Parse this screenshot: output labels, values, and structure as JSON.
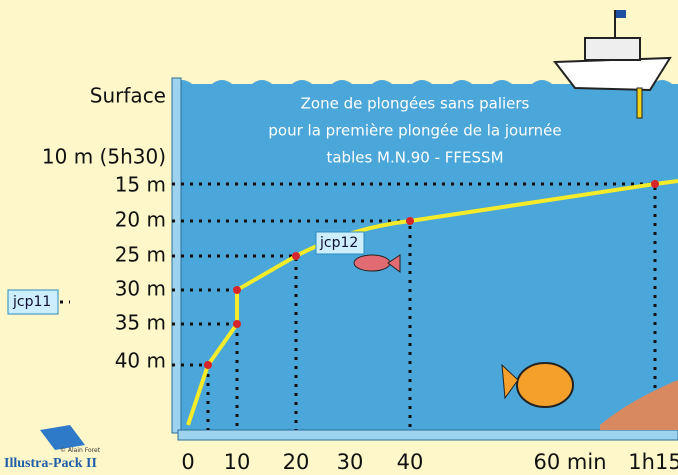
{
  "header": {
    "title_lines": [
      "Zone de plongées sans paliers",
      "pour la première plongée de la journée",
      "tables M.N.90 - FFESSM"
    ]
  },
  "y_labels": [
    "Surface",
    "10 m (5h30)",
    "15 m",
    "20 m",
    "25 m",
    "30 m",
    "35 m",
    "40 m"
  ],
  "x_labels": [
    "0",
    "10",
    "20",
    "30",
    "40",
    "60 min",
    "1h15"
  ],
  "annotations": [
    "jcp11",
    "jcp12"
  ],
  "logo": {
    "credit": "© Alain Foret",
    "name": "Illustra-Pack II"
  }
}
